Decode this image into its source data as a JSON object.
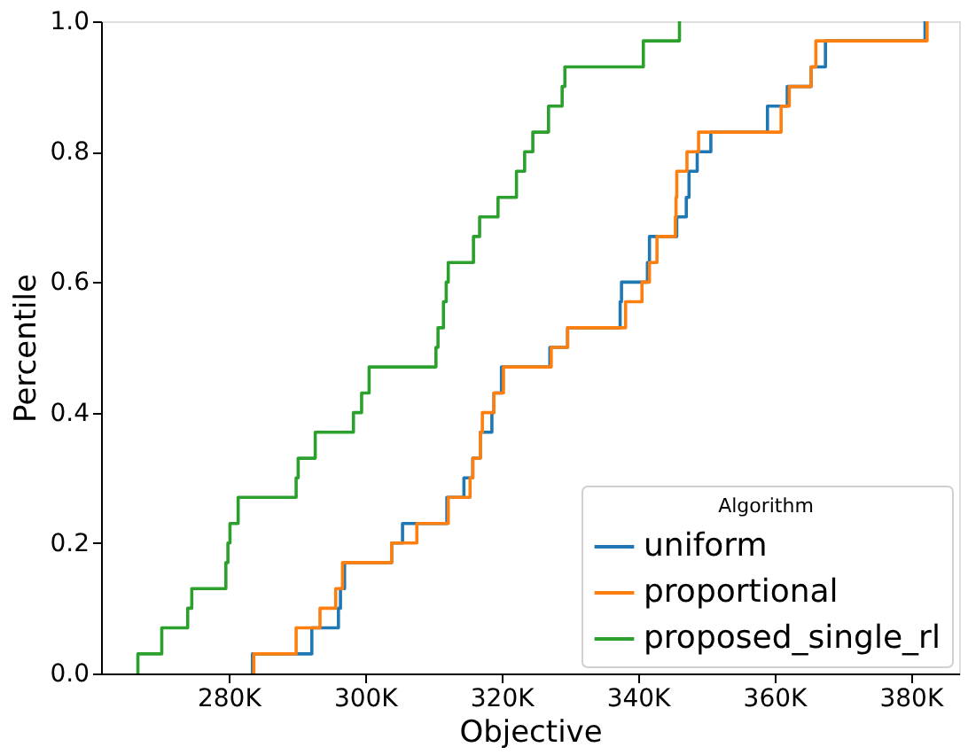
{
  "chart_data": {
    "type": "step",
    "xlabel": "Objective",
    "ylabel": "Percentile",
    "legend_title": "Algorithm",
    "legend": "bottom right",
    "grid": false,
    "line_style": "solid",
    "xlim": [
      261.3,
      387.1
    ],
    "xticks": [
      {
        "value": 280,
        "label": "280K"
      },
      {
        "value": 300,
        "label": "300K"
      },
      {
        "value": 320,
        "label": "320K"
      },
      {
        "value": 340,
        "label": "340K"
      },
      {
        "value": 360,
        "label": "360K"
      },
      {
        "value": 380,
        "label": "380K"
      }
    ],
    "ylim": [
      0,
      1
    ],
    "yticks": [
      {
        "value": 0,
        "label": "0.0"
      },
      {
        "value": 0.2,
        "label": "0.2"
      },
      {
        "value": 0.4,
        "label": "0.4"
      },
      {
        "value": 0.6,
        "label": "0.6"
      },
      {
        "value": 0.8,
        "label": "0.8"
      },
      {
        "value": 1,
        "label": "1.0"
      }
    ],
    "series": [
      {
        "name": "uniform",
        "color": "#1f77b4",
        "x": [
          283.5,
          283.5,
          292.2,
          296.1,
          296.4,
          297.0,
          303.9,
          305.5,
          312.0,
          314.5,
          315.8,
          316.9,
          318.6,
          318.9,
          320.0,
          327.1,
          329.7,
          337.4,
          337.6,
          341.4,
          341.7,
          345.7,
          347.1,
          347.5,
          348.7,
          350.7,
          359.0,
          361.9,
          365.4,
          367.5,
          382.1
        ],
        "values": [
          0,
          0.03,
          0.07,
          0.1,
          0.13,
          0.17,
          0.2,
          0.23,
          0.27,
          0.3,
          0.33,
          0.37,
          0.4,
          0.43,
          0.47,
          0.5,
          0.53,
          0.57,
          0.6,
          0.63,
          0.67,
          0.7,
          0.73,
          0.77,
          0.8,
          0.83,
          0.87,
          0.9,
          0.93,
          0.97,
          1.0
        ]
      },
      {
        "name": "proportional",
        "color": "#ff7f0e",
        "x": [
          283.7,
          283.7,
          289.9,
          293.4,
          295.7,
          296.7,
          303.9,
          307.6,
          312.2,
          315.4,
          315.8,
          316.9,
          317.2,
          318.9,
          320.3,
          327.3,
          329.7,
          338.2,
          340.6,
          341.7,
          342.8,
          345.5,
          345.6,
          345.7,
          347.2,
          348.9,
          361.0,
          362.2,
          365.4,
          366.1,
          382.4
        ],
        "values": [
          0,
          0.03,
          0.07,
          0.1,
          0.13,
          0.17,
          0.2,
          0.23,
          0.27,
          0.3,
          0.33,
          0.37,
          0.4,
          0.43,
          0.47,
          0.5,
          0.53,
          0.57,
          0.6,
          0.63,
          0.67,
          0.7,
          0.73,
          0.77,
          0.8,
          0.83,
          0.87,
          0.9,
          0.93,
          0.97,
          1.0
        ]
      },
      {
        "name": "proposed_single_rl",
        "color": "#2ca02c",
        "x": [
          266.7,
          266.7,
          270.2,
          274.0,
          274.6,
          279.6,
          279.9,
          280.2,
          281.4,
          289.9,
          290.2,
          292.7,
          298.3,
          299.5,
          300.6,
          310.4,
          310.7,
          311.5,
          311.9,
          312.2,
          315.9,
          316.8,
          319.5,
          322.2,
          323.4,
          324.6,
          326.9,
          328.9,
          329.3,
          340.8,
          346.1
        ],
        "values": [
          0,
          0.03,
          0.07,
          0.1,
          0.13,
          0.17,
          0.2,
          0.23,
          0.27,
          0.3,
          0.33,
          0.37,
          0.4,
          0.43,
          0.47,
          0.5,
          0.53,
          0.57,
          0.6,
          0.63,
          0.67,
          0.7,
          0.73,
          0.77,
          0.8,
          0.83,
          0.87,
          0.9,
          0.93,
          0.97,
          1.0
        ]
      }
    ]
  }
}
